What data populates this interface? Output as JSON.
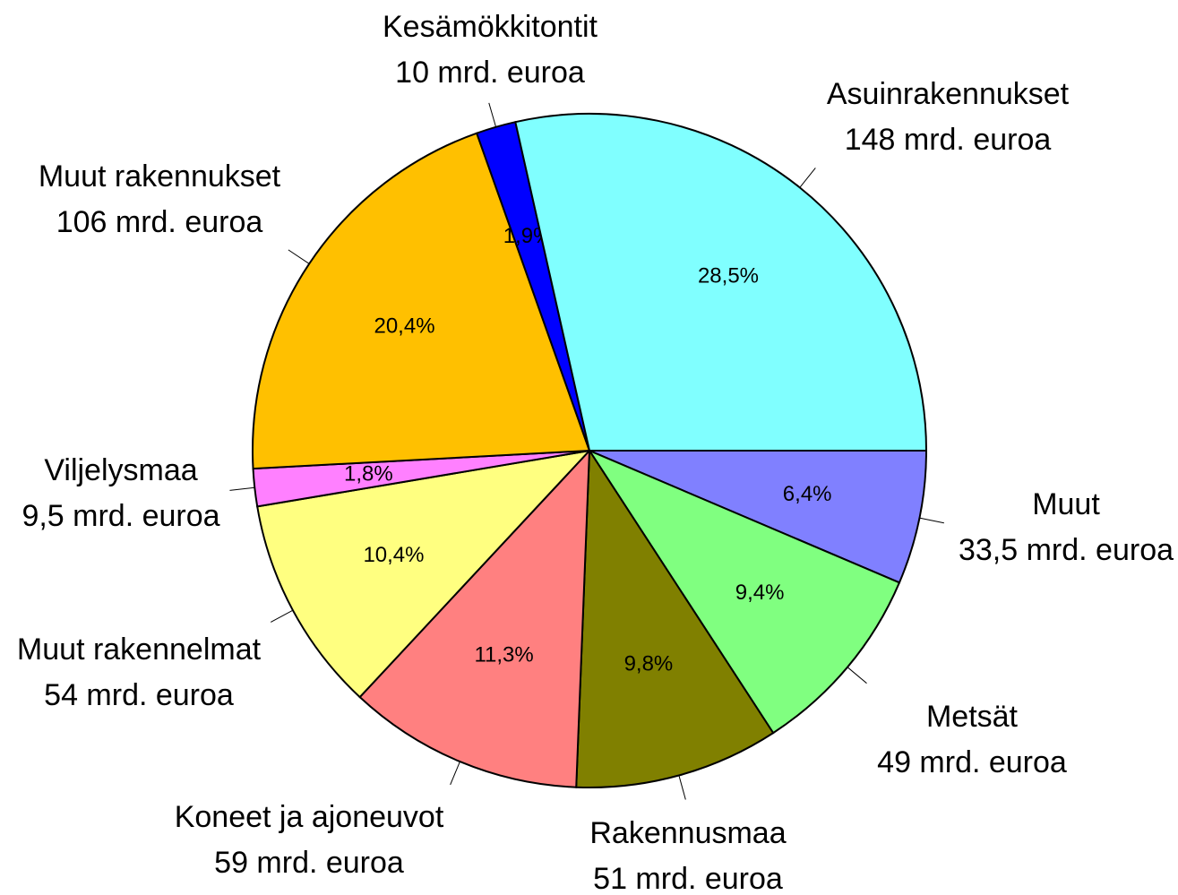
{
  "chart_data": {
    "type": "pie",
    "categories": [
      "Muut",
      "Metsät",
      "Rakennusmaa",
      "Koneet ja ajoneuvot",
      "Muut rakennelmat",
      "Viljelysmaa",
      "Muut rakennukset",
      "Kesämökkitontit",
      "Asuinrakennukset"
    ],
    "amount_labels": [
      "33,5 mrd. euroa",
      "49 mrd. euroa",
      "51 mrd. euroa",
      "59 mrd. euroa",
      "54 mrd. euroa",
      "9,5 mrd. euroa",
      "106 mrd. euroa",
      "10 mrd. euroa",
      "148 mrd. euroa"
    ],
    "values": [
      6.4,
      9.4,
      9.8,
      11.3,
      10.4,
      1.8,
      20.4,
      1.9,
      28.5
    ],
    "value_labels": [
      "6,4%",
      "9,4%",
      "9,8%",
      "11,3%",
      "10,4%",
      "1,8%",
      "20,4%",
      "1,9%",
      "28,5%"
    ],
    "colors": [
      "#8080ff",
      "#80ff80",
      "#808000",
      "#ff8080",
      "#ffff80",
      "#ff80ff",
      "#ffc000",
      "#0000ff",
      "#80ffff"
    ]
  }
}
